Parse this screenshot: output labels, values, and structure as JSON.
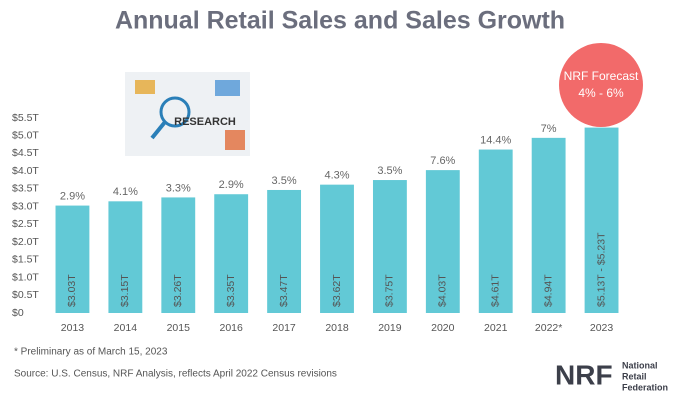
{
  "chart_data": {
    "type": "bar",
    "title": "Annual Retail Sales and Sales Growth",
    "categories": [
      "2013",
      "2014",
      "2015",
      "2016",
      "2017",
      "2018",
      "2019",
      "2020",
      "2021",
      "2022*",
      "2023"
    ],
    "values": [
      3.03,
      3.15,
      3.26,
      3.35,
      3.47,
      3.62,
      3.75,
      4.03,
      4.61,
      4.94,
      5.23
    ],
    "value_labels": [
      "$3.03T",
      "$3.15T",
      "$3.26T",
      "$3.35T",
      "$3.47T",
      "$3.62T",
      "$3.75T",
      "$4.03T",
      "$4.61T",
      "$4.94T",
      "$5.13T - $5.23T"
    ],
    "growth_labels": [
      "2.9%",
      "4.1%",
      "3.3%",
      "2.9%",
      "3.5%",
      "4.3%",
      "3.5%",
      "7.6%",
      "14.4%",
      "7%",
      null
    ],
    "color": "#62c9d6",
    "ylim": [
      0,
      5.5
    ],
    "yticks": [
      {
        "value": 0,
        "label": "$0"
      },
      {
        "value": 0.5,
        "label": "$0.5T"
      },
      {
        "value": 1,
        "label": "$1.0T"
      },
      {
        "value": 1.5,
        "label": "$1.5T"
      },
      {
        "value": 2,
        "label": "$2.0T"
      },
      {
        "value": 2.5,
        "label": "$2.5T"
      },
      {
        "value": 3,
        "label": "$3.0T"
      },
      {
        "value": 3.5,
        "label": "$3.5T"
      },
      {
        "value": 4,
        "label": "$4.0T"
      },
      {
        "value": 4.5,
        "label": "$4.5T"
      },
      {
        "value": 5,
        "label": "$5.0T"
      },
      {
        "value": 5.5,
        "label": "$5.5T"
      }
    ],
    "grid": false,
    "forecast": {
      "title": "NRF Forecast",
      "range": "4% - 6%"
    },
    "image_label": "RESEARCH",
    "footnote": "* Preliminary as of March 15, 2023",
    "source": "Source: U.S. Census, NRF Analysis, reflects April 2022 Census revisions",
    "logo": {
      "mark": "NRF",
      "lines": [
        "National",
        "Retail",
        "Federation"
      ]
    }
  }
}
